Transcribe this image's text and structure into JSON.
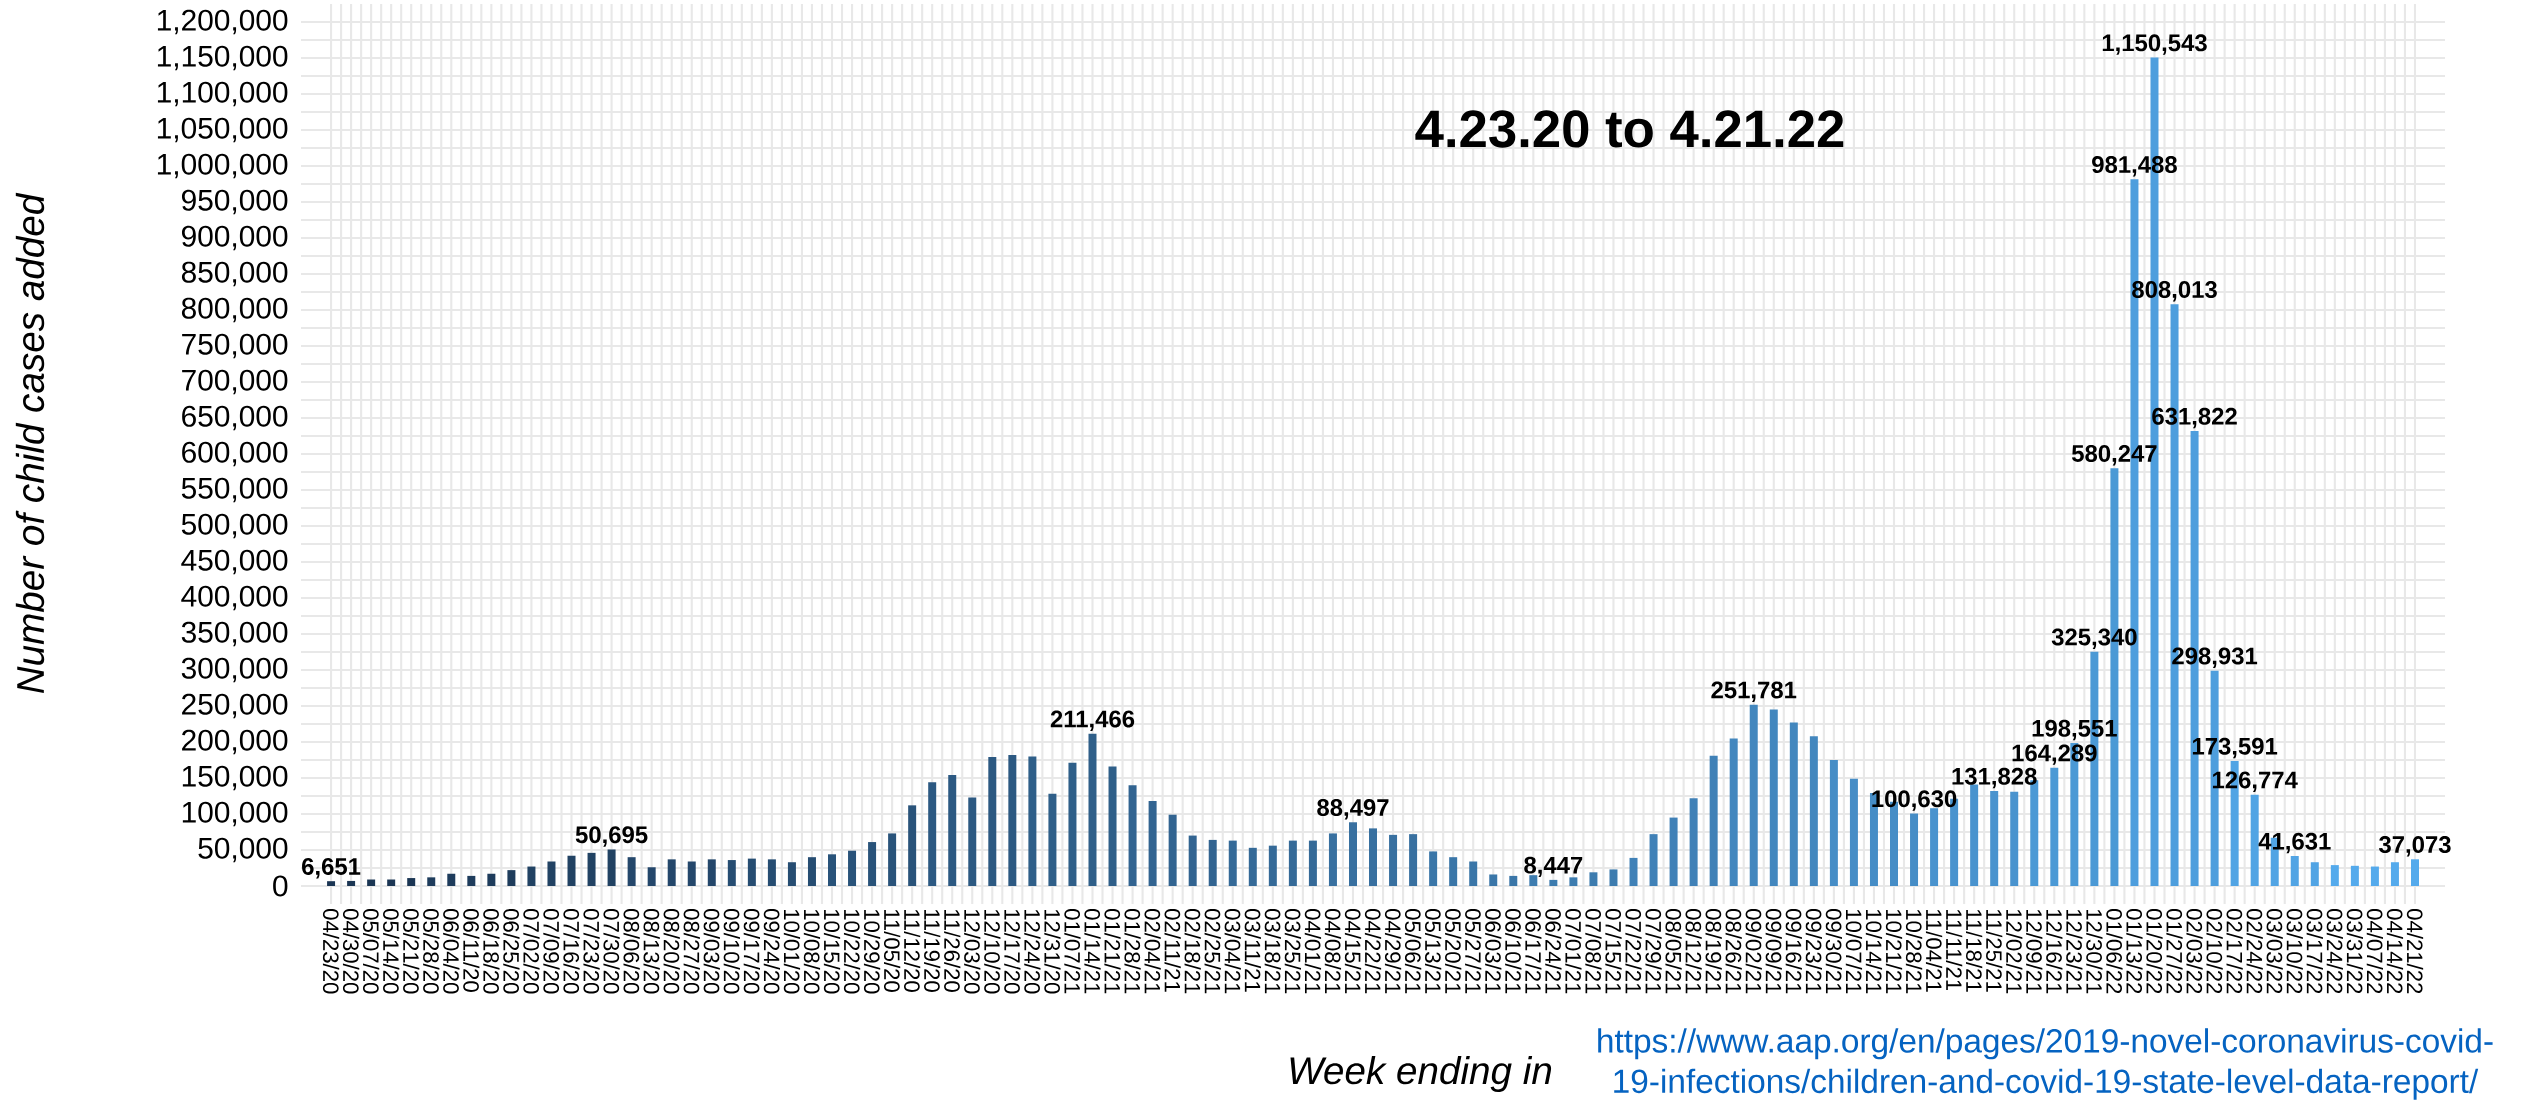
{
  "chart_data": {
    "type": "bar",
    "title": "4.23.20 to 4.21.22",
    "xlabel": "Week ending in",
    "ylabel": "Number of child cases added",
    "annotations": [
      "https://www.aap.org/en/pages/2019-novel-coronavirus-covid-19-infections/children-and-covid-19-state-level-data-report/"
    ],
    "categories": [
      "04/23/20",
      "04/30/20",
      "05/07/20",
      "05/14/20",
      "05/21/20",
      "05/28/20",
      "06/04/20",
      "06/11/20",
      "06/18/20",
      "06/25/20",
      "07/02/20",
      "07/09/20",
      "07/16/20",
      "07/23/20",
      "07/30/20",
      "08/06/20",
      "08/13/20",
      "08/20/20",
      "08/27/20",
      "09/03/20",
      "09/10/20",
      "09/17/20",
      "09/24/20",
      "10/01/20",
      "10/08/20",
      "10/15/20",
      "10/22/20",
      "10/29/20",
      "11/05/20",
      "11/12/20",
      "11/19/20",
      "11/26/20",
      "12/03/20",
      "12/10/20",
      "12/17/20",
      "12/24/20",
      "12/31/20",
      "01/07/21",
      "01/14/21",
      "01/21/21",
      "01/28/21",
      "02/04/21",
      "02/11/21",
      "02/18/21",
      "02/25/21",
      "03/04/21",
      "03/11/21",
      "03/18/21",
      "03/25/21",
      "04/01/21",
      "04/08/21",
      "04/15/21",
      "04/22/21",
      "04/29/21",
      "05/06/21",
      "05/13/21",
      "05/20/21",
      "05/27/21",
      "06/03/21",
      "06/10/21",
      "06/17/21",
      "06/24/21",
      "07/01/21",
      "07/08/21",
      "07/15/21",
      "07/22/21",
      "07/29/21",
      "08/05/21",
      "08/12/21",
      "08/19/21",
      "08/26/21",
      "09/02/21",
      "09/09/21",
      "09/16/21",
      "09/23/21",
      "09/30/21",
      "10/07/21",
      "10/14/21",
      "10/21/21",
      "10/28/21",
      "11/04/21",
      "11/11/21",
      "11/18/21",
      "11/25/21",
      "12/02/21",
      "12/09/21",
      "12/16/21",
      "12/23/21",
      "12/30/21",
      "01/06/22",
      "01/13/22",
      "01/20/22",
      "01/27/22",
      "02/03/22",
      "02/10/22",
      "02/17/22",
      "02/24/22",
      "03/03/22",
      "03/10/22",
      "03/17/22",
      "03/24/22",
      "03/31/22",
      "04/07/22",
      "04/14/22",
      "04/21/22"
    ],
    "values": [
      6651,
      7000,
      9000,
      9000,
      11000,
      12000,
      17000,
      14000,
      17000,
      22000,
      27000,
      34000,
      42000,
      46000,
      50695,
      40000,
      26000,
      37000,
      34000,
      37000,
      36000,
      38000,
      37000,
      33000,
      40000,
      44000,
      49000,
      61000,
      73000,
      112000,
      144000,
      154000,
      123000,
      179000,
      182000,
      180000,
      128000,
      171000,
      211466,
      166000,
      140000,
      118000,
      99000,
      70000,
      64000,
      63000,
      53000,
      56000,
      63000,
      63000,
      73000,
      88497,
      80000,
      71000,
      72000,
      48000,
      40000,
      34000,
      16000,
      14000,
      15000,
      8447,
      12000,
      19000,
      23000,
      39000,
      72000,
      95000,
      122000,
      181000,
      205000,
      251781,
      245000,
      227000,
      208000,
      175000,
      149000,
      129000,
      117000,
      100630,
      108000,
      121000,
      141000,
      131828,
      131000,
      147000,
      164289,
      198551,
      325340,
      580247,
      981488,
      1150543,
      808013,
      631822,
      298931,
      173591,
      126774,
      67000,
      41631,
      33000,
      29000,
      28000,
      27000,
      33000,
      37073
    ],
    "value_labels": [
      "6,651",
      null,
      null,
      null,
      null,
      null,
      null,
      null,
      null,
      null,
      null,
      null,
      null,
      null,
      "50,695",
      null,
      null,
      null,
      null,
      null,
      null,
      null,
      null,
      null,
      null,
      null,
      null,
      null,
      null,
      null,
      null,
      null,
      null,
      null,
      null,
      null,
      null,
      null,
      "211,466",
      null,
      null,
      null,
      null,
      null,
      null,
      null,
      null,
      null,
      null,
      null,
      null,
      "88,497",
      null,
      null,
      null,
      null,
      null,
      null,
      null,
      null,
      null,
      "8,447",
      null,
      null,
      null,
      null,
      null,
      null,
      null,
      null,
      null,
      "251,781",
      null,
      null,
      null,
      null,
      null,
      null,
      null,
      "100,630",
      null,
      null,
      null,
      "131,828",
      null,
      null,
      "164,289",
      "198,551",
      "325,340",
      "580,247",
      "981,488",
      "1,150,543",
      "808,013",
      "631,822",
      "298,931",
      "173,591",
      "126,774",
      null,
      "41,631",
      null,
      null,
      null,
      null,
      null,
      "37,073"
    ],
    "colors": [
      "#1b3654",
      "#1b3654",
      "#1b3654",
      "#1b3654",
      "#1b3654",
      "#1e3c5c",
      "#1e3c5c",
      "#1e3c5c",
      "#1e3c5c",
      "#1e3c5c",
      "#214263",
      "#214263",
      "#214263",
      "#214263",
      "#214263",
      "#24476b",
      "#24476b",
      "#24476b",
      "#24476b",
      "#24476b",
      "#264d72",
      "#264d72",
      "#264d72",
      "#264d72",
      "#264d72",
      "#29537a",
      "#29537a",
      "#29537a",
      "#29537a",
      "#29537a",
      "#2c5982",
      "#2c5982",
      "#2c5982",
      "#2c5982",
      "#2c5982",
      "#2f5f89",
      "#2f5f89",
      "#2f5f89",
      "#2f5f89",
      "#2f5f89",
      "#326491",
      "#326491",
      "#326491",
      "#326491",
      "#326491",
      "#356a98",
      "#356a98",
      "#356a98",
      "#356a98",
      "#356a98",
      "#3870a0",
      "#3870a0",
      "#3870a0",
      "#3870a0",
      "#3870a0",
      "#3a76a8",
      "#3a76a8",
      "#3a76a8",
      "#3a76a8",
      "#3a76a8",
      "#3d7caf",
      "#3d7caf",
      "#3d7caf",
      "#3d7caf",
      "#3d7caf",
      "#4081b7",
      "#4081b7",
      "#4081b7",
      "#4081b7",
      "#4081b7",
      "#4387be",
      "#4387be",
      "#4387be",
      "#4387be",
      "#4387be",
      "#468dc6",
      "#468dc6",
      "#468dc6",
      "#468dc6",
      "#468dc6",
      "#4993ce",
      "#4993ce",
      "#4993ce",
      "#4993ce",
      "#4993ce",
      "#4b99d5",
      "#4b99d5",
      "#4b99d5",
      "#4b99d5",
      "#4b99d5",
      "#4e9edd",
      "#4e9edd",
      "#4e9edd",
      "#4e9edd",
      "#4e9edd",
      "#51a4e4",
      "#51a4e4",
      "#51a4e4",
      "#51a4e4",
      "#51a4e4",
      "#54aaec",
      "#54aaec",
      "#54aaec",
      "#54aaec",
      "#54aaec"
    ],
    "ylim": [
      -25000,
      1225000
    ],
    "yticks": [
      {
        "value": 0,
        "label": "0"
      },
      {
        "value": 50000,
        "label": "50,000"
      },
      {
        "value": 100000,
        "label": "100,000"
      },
      {
        "value": 150000,
        "label": "150,000"
      },
      {
        "value": 200000,
        "label": "200,000"
      },
      {
        "value": 250000,
        "label": "250,000"
      },
      {
        "value": 300000,
        "label": "300,000"
      },
      {
        "value": 350000,
        "label": "350,000"
      },
      {
        "value": 400000,
        "label": "400,000"
      },
      {
        "value": 450000,
        "label": "450,000"
      },
      {
        "value": 500000,
        "label": "500,000"
      },
      {
        "value": 550000,
        "label": "550,000"
      },
      {
        "value": 600000,
        "label": "600,000"
      },
      {
        "value": 650000,
        "label": "650,000"
      },
      {
        "value": 700000,
        "label": "700,000"
      },
      {
        "value": 750000,
        "label": "750,000"
      },
      {
        "value": 800000,
        "label": "800,000"
      },
      {
        "value": 850000,
        "label": "850,000"
      },
      {
        "value": 900000,
        "label": "900,000"
      },
      {
        "value": 950000,
        "label": "950,000"
      },
      {
        "value": 1000000,
        "label": "1,000,000"
      },
      {
        "value": 1050000,
        "label": "1,050,000"
      },
      {
        "value": 1100000,
        "label": "1,100,000"
      },
      {
        "value": 1150000,
        "label": "1,150,000"
      },
      {
        "value": 1200000,
        "label": "1,200,000"
      }
    ],
    "grid": true
  }
}
